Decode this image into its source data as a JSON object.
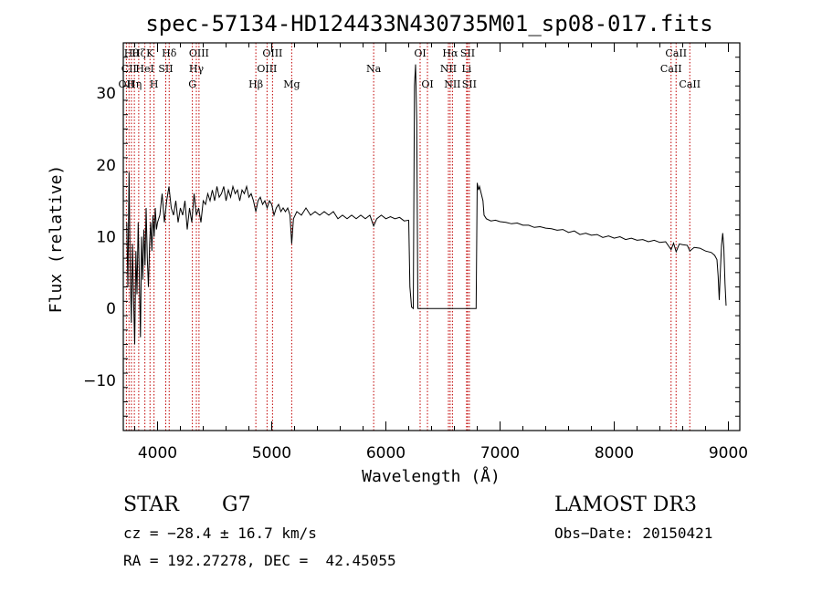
{
  "chart_data": {
    "type": "line",
    "title": "spec-57134-HD124433N430735M01_sp08-017.fits",
    "xlabel": "Wavelength (Å)",
    "ylabel": "Flux (relative)",
    "xlim": [
      3700,
      9100
    ],
    "ylim": [
      -17,
      37
    ],
    "x_ticks": [
      4000,
      5000,
      6000,
      7000,
      8000,
      9000
    ],
    "y_ticks": [
      -10,
      0,
      10,
      20,
      30
    ],
    "grid": false,
    "line_color": "#000000",
    "marker_line_color": "#c00000",
    "series": [
      {
        "points": [
          [
            3730,
            12
          ],
          [
            3740,
            3
          ],
          [
            3750,
            19
          ],
          [
            3760,
            6
          ],
          [
            3770,
            -2
          ],
          [
            3780,
            9
          ],
          [
            3790,
            1
          ],
          [
            3800,
            -5
          ],
          [
            3810,
            8
          ],
          [
            3820,
            2
          ],
          [
            3830,
            12
          ],
          [
            3840,
            5
          ],
          [
            3850,
            -4
          ],
          [
            3860,
            10
          ],
          [
            3870,
            4
          ],
          [
            3880,
            11
          ],
          [
            3890,
            6
          ],
          [
            3900,
            14
          ],
          [
            3910,
            7
          ],
          [
            3920,
            3
          ],
          [
            3930,
            9
          ],
          [
            3940,
            12
          ],
          [
            3950,
            8
          ],
          [
            3960,
            13
          ],
          [
            3970,
            10
          ],
          [
            3980,
            14
          ],
          [
            3990,
            11
          ],
          [
            4000,
            12
          ],
          [
            4020,
            13
          ],
          [
            4040,
            16
          ],
          [
            4060,
            12
          ],
          [
            4080,
            15
          ],
          [
            4100,
            17
          ],
          [
            4120,
            14
          ],
          [
            4140,
            13
          ],
          [
            4160,
            15
          ],
          [
            4180,
            12
          ],
          [
            4200,
            14
          ],
          [
            4220,
            13
          ],
          [
            4240,
            15
          ],
          [
            4260,
            11
          ],
          [
            4280,
            14
          ],
          [
            4300,
            12
          ],
          [
            4320,
            16
          ],
          [
            4340,
            13
          ],
          [
            4360,
            14
          ],
          [
            4380,
            12
          ],
          [
            4400,
            15
          ],
          [
            4420,
            14.5
          ],
          [
            4440,
            16
          ],
          [
            4460,
            15
          ],
          [
            4480,
            16.5
          ],
          [
            4500,
            15
          ],
          [
            4520,
            17
          ],
          [
            4540,
            15.5
          ],
          [
            4560,
            16
          ],
          [
            4580,
            17
          ],
          [
            4600,
            15
          ],
          [
            4620,
            16.5
          ],
          [
            4640,
            15.5
          ],
          [
            4660,
            17
          ],
          [
            4680,
            16
          ],
          [
            4700,
            16.5
          ],
          [
            4720,
            15
          ],
          [
            4740,
            16.5
          ],
          [
            4760,
            16
          ],
          [
            4780,
            17
          ],
          [
            4800,
            15.5
          ],
          [
            4820,
            16
          ],
          [
            4840,
            15
          ],
          [
            4861,
            13.5
          ],
          [
            4880,
            15
          ],
          [
            4900,
            15.5
          ],
          [
            4920,
            14.5
          ],
          [
            4940,
            15
          ],
          [
            4960,
            14
          ],
          [
            4980,
            15
          ],
          [
            5000,
            14.5
          ],
          [
            5020,
            13
          ],
          [
            5040,
            14
          ],
          [
            5060,
            14.5
          ],
          [
            5080,
            13.5
          ],
          [
            5100,
            14
          ],
          [
            5120,
            13.5
          ],
          [
            5140,
            14
          ],
          [
            5160,
            13
          ],
          [
            5175,
            9
          ],
          [
            5190,
            12.5
          ],
          [
            5220,
            13.5
          ],
          [
            5260,
            13
          ],
          [
            5300,
            14
          ],
          [
            5340,
            13
          ],
          [
            5380,
            13.5
          ],
          [
            5420,
            13
          ],
          [
            5460,
            13.5
          ],
          [
            5500,
            13
          ],
          [
            5540,
            13.5
          ],
          [
            5580,
            12.5
          ],
          [
            5620,
            13
          ],
          [
            5660,
            12.5
          ],
          [
            5700,
            13
          ],
          [
            5740,
            12.5
          ],
          [
            5780,
            13
          ],
          [
            5820,
            12.5
          ],
          [
            5860,
            13
          ],
          [
            5893,
            11.5
          ],
          [
            5920,
            12.5
          ],
          [
            5960,
            13
          ],
          [
            6000,
            12.5
          ],
          [
            6040,
            12.8
          ],
          [
            6080,
            12.5
          ],
          [
            6120,
            12.7
          ],
          [
            6160,
            12.2
          ],
          [
            6200,
            12.3
          ],
          [
            6210,
            3
          ],
          [
            6225,
            0.2
          ],
          [
            6240,
            0
          ],
          [
            6250,
            31
          ],
          [
            6260,
            34
          ],
          [
            6270,
            26
          ],
          [
            6280,
            0
          ],
          [
            6460,
            0
          ],
          [
            6640,
            0
          ],
          [
            6750,
            0
          ],
          [
            6790,
            0
          ],
          [
            6800,
            17.5
          ],
          [
            6810,
            16.5
          ],
          [
            6820,
            17
          ],
          [
            6835,
            16
          ],
          [
            6850,
            15
          ],
          [
            6860,
            13
          ],
          [
            6880,
            12.5
          ],
          [
            6920,
            12.2
          ],
          [
            6960,
            12.3
          ],
          [
            7000,
            12.1
          ],
          [
            7050,
            12
          ],
          [
            7100,
            11.8
          ],
          [
            7150,
            11.9
          ],
          [
            7200,
            11.6
          ],
          [
            7250,
            11.6
          ],
          [
            7300,
            11.3
          ],
          [
            7350,
            11.4
          ],
          [
            7400,
            11.2
          ],
          [
            7450,
            11.1
          ],
          [
            7500,
            10.9
          ],
          [
            7550,
            11
          ],
          [
            7600,
            10.6
          ],
          [
            7650,
            10.8
          ],
          [
            7700,
            10.3
          ],
          [
            7750,
            10.5
          ],
          [
            7800,
            10.2
          ],
          [
            7850,
            10.3
          ],
          [
            7900,
            9.9
          ],
          [
            7950,
            10.1
          ],
          [
            8000,
            9.8
          ],
          [
            8050,
            10
          ],
          [
            8100,
            9.6
          ],
          [
            8150,
            9.8
          ],
          [
            8200,
            9.5
          ],
          [
            8250,
            9.6
          ],
          [
            8300,
            9.3
          ],
          [
            8350,
            9.5
          ],
          [
            8400,
            9.2
          ],
          [
            8450,
            9.3
          ],
          [
            8498,
            8.2
          ],
          [
            8520,
            9.1
          ],
          [
            8542,
            7.9
          ],
          [
            8570,
            9
          ],
          [
            8600,
            8.9
          ],
          [
            8640,
            8.8
          ],
          [
            8662,
            8
          ],
          [
            8700,
            8.5
          ],
          [
            8750,
            8.4
          ],
          [
            8800,
            8
          ],
          [
            8850,
            7.8
          ],
          [
            8880,
            7.4
          ],
          [
            8900,
            6.8
          ],
          [
            8910,
            4.5
          ],
          [
            8920,
            1.2
          ],
          [
            8930,
            5.5
          ],
          [
            8940,
            8.8
          ],
          [
            8950,
            10.5
          ],
          [
            8960,
            8.5
          ],
          [
            8970,
            3.5
          ],
          [
            8980,
            0.4
          ]
        ]
      }
    ],
    "line_markers": [
      {
        "wavelength": 3727,
        "labels": [
          "OII"
        ],
        "row": 2
      },
      {
        "wavelength": 3750,
        "labels": [
          "CII"
        ],
        "row": 1
      },
      {
        "wavelength": 3771,
        "labels": [
          "Hθ"
        ],
        "row": 0
      },
      {
        "wavelength": 3797,
        "labels": [
          "Hη"
        ],
        "row": 2
      },
      {
        "wavelength": 3835,
        "labels": [
          "Hζ"
        ],
        "row": 0
      },
      {
        "wavelength": 3889,
        "labels": [
          "HeI"
        ],
        "row": 1
      },
      {
        "wavelength": 3934,
        "labels": [
          "K"
        ],
        "row": 0
      },
      {
        "wavelength": 3969,
        "labels": [
          "H"
        ],
        "row": 2
      },
      {
        "wavelength": 4072,
        "labels": [
          "SII"
        ],
        "row": 1
      },
      {
        "wavelength": 4102,
        "labels": [
          "Hδ"
        ],
        "row": 0
      },
      {
        "wavelength": 4305,
        "labels": [
          "G"
        ],
        "row": 2
      },
      {
        "wavelength": 4340,
        "labels": [
          "Hγ"
        ],
        "row": 1
      },
      {
        "wavelength": 4363,
        "labels": [
          "OIII"
        ],
        "row": 0
      },
      {
        "wavelength": 4861,
        "labels": [
          "Hβ"
        ],
        "row": 2
      },
      {
        "wavelength": 4959,
        "labels": [
          "OIII"
        ],
        "row": 1
      },
      {
        "wavelength": 5007,
        "labels": [
          "OIII"
        ],
        "row": 0
      },
      {
        "wavelength": 5175,
        "labels": [
          "Mg"
        ],
        "row": 2
      },
      {
        "wavelength": 5893,
        "labels": [
          "Na"
        ],
        "row": 1
      },
      {
        "wavelength": 6300,
        "labels": [
          "OI"
        ],
        "row": 0
      },
      {
        "wavelength": 6364,
        "labels": [
          "OI"
        ],
        "row": 2
      },
      {
        "wavelength": 6548,
        "labels": [
          "NII"
        ],
        "row": 1
      },
      {
        "wavelength": 6563,
        "labels": [
          "Hα"
        ],
        "row": 0
      },
      {
        "wavelength": 6583,
        "labels": [
          "NII"
        ],
        "row": 2
      },
      {
        "wavelength": 6707,
        "labels": [
          "Li"
        ],
        "row": 1
      },
      {
        "wavelength": 6716,
        "labels": [
          "SII"
        ],
        "row": 0
      },
      {
        "wavelength": 6731,
        "labels": [
          "SII"
        ],
        "row": 2
      },
      {
        "wavelength": 8498,
        "labels": [
          "CaII"
        ],
        "row": 1
      },
      {
        "wavelength": 8542,
        "labels": [
          "CaII"
        ],
        "row": 0
      },
      {
        "wavelength": 8662,
        "labels": [
          "CaII"
        ],
        "row": 2
      }
    ]
  },
  "info": {
    "object_class": "STAR",
    "subclass": "G7",
    "survey": "LAMOST DR3",
    "cz": "cz = −28.4 ± 16.7 km/s",
    "obs_date": "Obs−Date: 20150421",
    "coords": "RA = 192.27278, DEC =  42.45055"
  }
}
